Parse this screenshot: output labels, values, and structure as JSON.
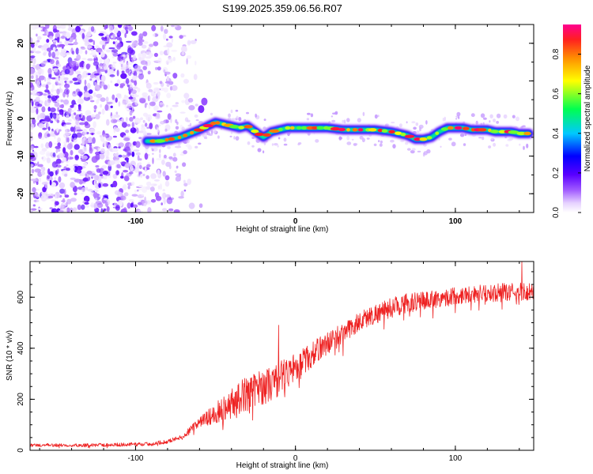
{
  "title": "S199.2025.359.06.56.R07",
  "chart_data": [
    {
      "type": "heatmap",
      "name": "spectrogram",
      "xlabel": "Height of straight line (km)",
      "ylabel": "Frequency (Hz)",
      "xlim": [
        -166,
        149
      ],
      "ylim": [
        -25,
        25
      ],
      "xticks": [
        -100,
        0,
        100
      ],
      "yticks": [
        -20,
        -10,
        0,
        10,
        20
      ],
      "noise_region_x": [
        -166,
        -66
      ],
      "ridge": {
        "x": [
          -93,
          -85,
          -78,
          -72,
          -66,
          -60,
          -55,
          -50,
          -45,
          -40,
          -35,
          -30,
          -25,
          -20,
          -15,
          -10,
          -5,
          0,
          10,
          20,
          30,
          40,
          50,
          60,
          65,
          70,
          75,
          80,
          85,
          90,
          95,
          100,
          105,
          110,
          115,
          120,
          125,
          130,
          135,
          140,
          146
        ],
        "y": [
          -6,
          -6,
          -5.5,
          -5,
          -4,
          -3,
          -2,
          -1,
          -1.5,
          -2,
          -2.5,
          -2,
          -3.5,
          -5,
          -3.5,
          -3,
          -2.5,
          -2.5,
          -2.5,
          -2.5,
          -3,
          -3,
          -3,
          -3.5,
          -4,
          -4.5,
          -5.5,
          -5.5,
          -5,
          -3.5,
          -2.5,
          -2.5,
          -2.5,
          -3,
          -3,
          -3,
          -3.5,
          -3.5,
          -3.5,
          -4,
          -4
        ]
      },
      "blobs": [
        {
          "x": -59,
          "y": 2.5,
          "value": 0.15
        },
        {
          "x": -57,
          "y": 4.5,
          "value": 0.12
        }
      ],
      "colorbar": {
        "label": "Normalized spectral amplitude",
        "range": [
          0.0,
          0.95
        ],
        "ticks": [
          0.0,
          0.2,
          0.4,
          0.6,
          0.8
        ],
        "tick_labels": [
          "0.0",
          "0.2",
          "0.4",
          "0.6",
          "0.8"
        ]
      }
    },
    {
      "type": "line",
      "name": "snr",
      "xlabel": "Height of straight line (km)",
      "ylabel": "SNR (10 * v/v)",
      "xlim": [
        -166,
        149
      ],
      "ylim": [
        0,
        740
      ],
      "xticks": [
        -100,
        0,
        100
      ],
      "yticks": [
        0,
        200,
        400,
        600
      ],
      "color": "#ee2222",
      "x": [
        -166,
        -150,
        -130,
        -110,
        -90,
        -80,
        -70,
        -65,
        -60,
        -55,
        -50,
        -45,
        -40,
        -35,
        -30,
        -25,
        -20,
        -15,
        -10,
        -5,
        0,
        5,
        10,
        15,
        20,
        25,
        30,
        35,
        40,
        45,
        50,
        55,
        60,
        65,
        70,
        75,
        80,
        85,
        90,
        95,
        100,
        105,
        110,
        115,
        120,
        125,
        130,
        135,
        140,
        145,
        149
      ],
      "y": [
        20,
        20,
        20,
        22,
        25,
        35,
        55,
        85,
        110,
        125,
        145,
        165,
        185,
        205,
        225,
        240,
        250,
        260,
        280,
        305,
        330,
        350,
        370,
        400,
        420,
        440,
        460,
        480,
        505,
        520,
        535,
        545,
        560,
        568,
        578,
        580,
        585,
        592,
        595,
        600,
        605,
        610,
        612,
        615,
        612,
        618,
        620,
        620,
        622,
        620,
        622
      ],
      "noise_amp": {
        "x": [
          -166,
          -70,
          -60,
          -50,
          -40,
          -30,
          -20,
          -10,
          0,
          20,
          40,
          60,
          80,
          100,
          149
        ],
        "y": [
          6,
          8,
          25,
          40,
          60,
          70,
          70,
          70,
          55,
          45,
          40,
          40,
          38,
          35,
          35
        ]
      },
      "spikes": [
        {
          "x": -10.5,
          "y": 490
        },
        {
          "x": 141.5,
          "y": 740
        }
      ]
    }
  ]
}
